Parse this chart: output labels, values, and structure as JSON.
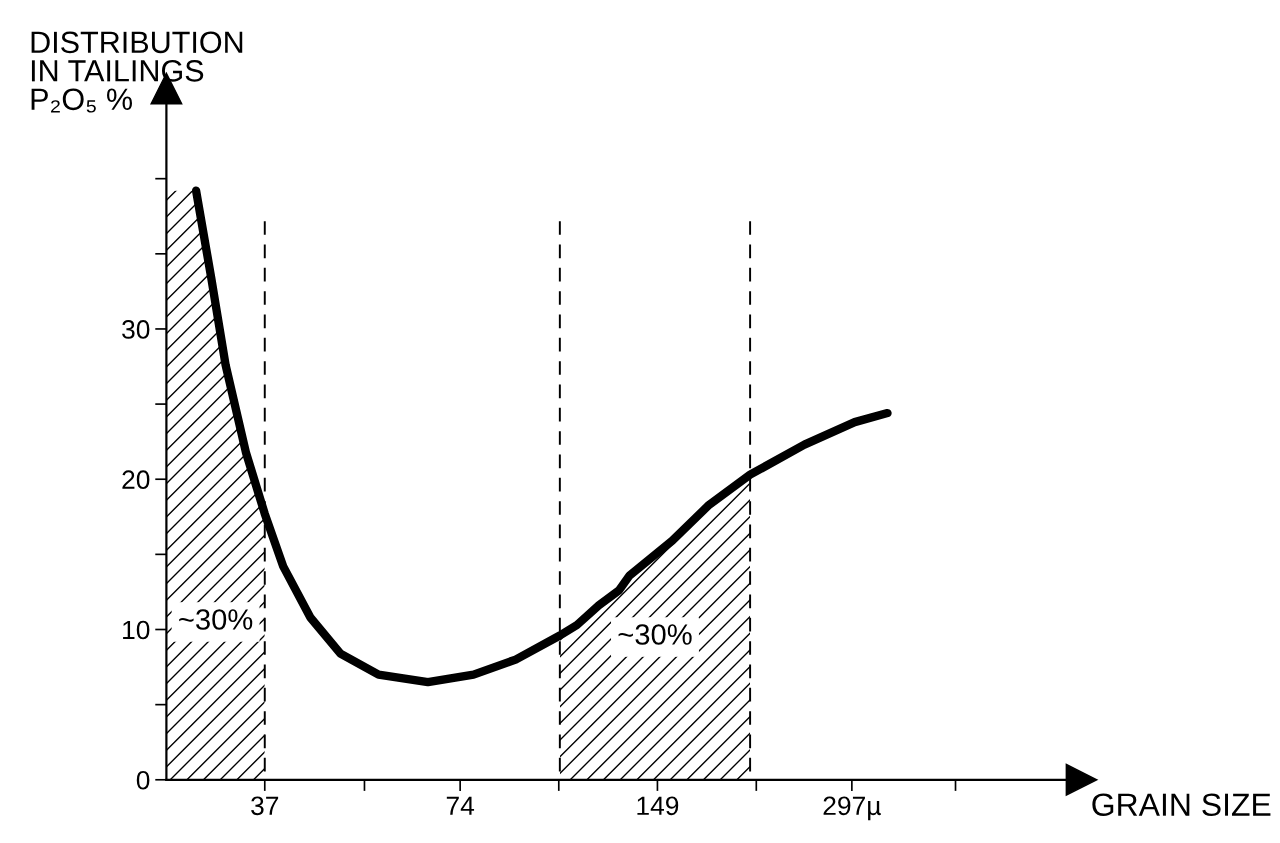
{
  "chart_data": {
    "type": "line",
    "ylabel": "DISTRIBUTION\nIN TAILINGS\nP₂O₅ %",
    "xlabel": "GRAIN SIZE",
    "log": "x",
    "xlim": [
      26.1,
      671
    ],
    "ylim": [
      0,
      46
    ],
    "xticks": [
      37,
      {
        "value": 52.7,
        "label": null
      },
      74,
      {
        "value": 105,
        "label": null
      },
      149,
      {
        "value": 211.6,
        "label": null
      },
      {
        "value": 297,
        "label": "297µ"
      },
      {
        "value": 429,
        "label": null
      }
    ],
    "yticks": [
      0,
      {
        "value": 5,
        "label": null
      },
      10,
      {
        "value": 15,
        "label": null
      },
      20,
      {
        "value": 25,
        "label": null
      },
      30,
      {
        "value": 35,
        "label": null
      },
      {
        "value": 40,
        "label": null
      }
    ],
    "grid": false,
    "legend": false,
    "marker": "none",
    "line_style": "solid",
    "series": [
      {
        "color": "#000000",
        "x": [
          29.0,
          30.6,
          32.2,
          34.6,
          37,
          39.5,
          43.5,
          48.4,
          55.4,
          66.0,
          77.6,
          90.1,
          105.4,
          112,
          121,
          130,
          135,
          157,
          179,
          207,
          251,
          300,
          337
        ],
        "values": [
          39.2,
          33.4,
          27.6,
          21.8,
          17.7,
          14.2,
          10.8,
          8.4,
          7.0,
          6.5,
          7.0,
          8.0,
          9.6,
          10.3,
          11.6,
          12.6,
          13.6,
          15.9,
          18.3,
          20.3,
          22.3,
          23.8,
          24.4
        ]
      }
    ],
    "bands": [
      {
        "axis": "x",
        "from": 26.1,
        "to": 37,
        "label": "~30%",
        "color": "#000000"
      },
      {
        "axis": "x",
        "from": 105.4,
        "to": 207,
        "label": "~30%",
        "color": "#000000"
      }
    ],
    "ref_lines": [
      {
        "axis": "x",
        "value": 37,
        "color": "#000000",
        "line_style": "dashed"
      },
      {
        "axis": "x",
        "value": 105.4,
        "color": "#000000",
        "line_style": "dashed"
      },
      {
        "axis": "x",
        "value": 207,
        "color": "#000000",
        "line_style": "dashed"
      }
    ]
  }
}
